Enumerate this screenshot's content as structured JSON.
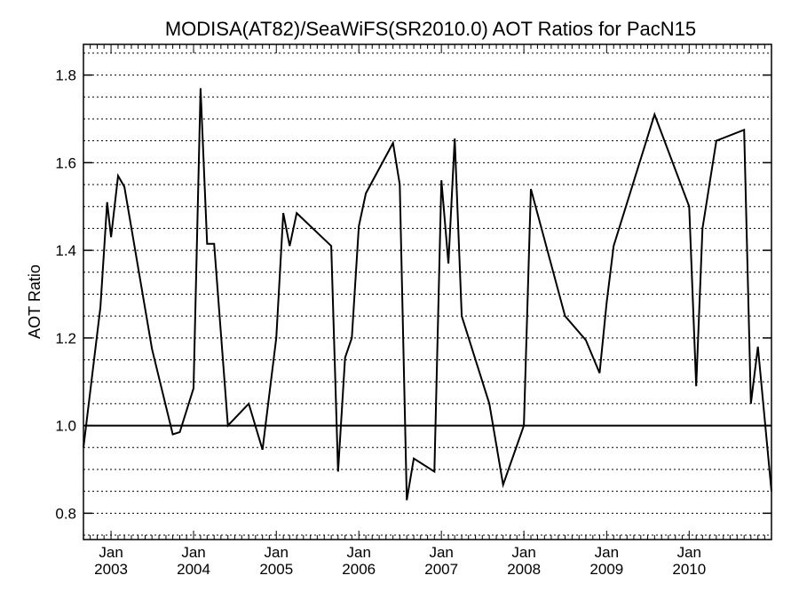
{
  "chart_data": {
    "type": "line",
    "title": "MODISA(AT82)/SeaWiFS(SR2010.0)  AOT Ratios for PacN15",
    "ylabel": "AOT Ratio",
    "xlabel": "",
    "xlim": [
      "2002-09-01",
      "2010-12-31"
    ],
    "ylim": [
      0.74,
      1.87
    ],
    "yticks": [
      0.8,
      1.0,
      1.2,
      1.4,
      1.6,
      1.8
    ],
    "ytick_labels": [
      "0.8",
      "1.0",
      "1.2",
      "1.4",
      "1.6",
      "1.8"
    ],
    "xticks": [
      {
        "date": "2003-01-01",
        "month": "Jan",
        "year": "2003"
      },
      {
        "date": "2004-01-01",
        "month": "Jan",
        "year": "2004"
      },
      {
        "date": "2005-01-01",
        "month": "Jan",
        "year": "2005"
      },
      {
        "date": "2006-01-01",
        "month": "Jan",
        "year": "2006"
      },
      {
        "date": "2007-01-01",
        "month": "Jan",
        "year": "2007"
      },
      {
        "date": "2008-01-01",
        "month": "Jan",
        "year": "2008"
      },
      {
        "date": "2009-01-01",
        "month": "Jan",
        "year": "2009"
      },
      {
        "date": "2010-01-01",
        "month": "Jan",
        "year": "2010"
      }
    ],
    "grid": "horizontal-dotted",
    "reference_line": 1.0,
    "series": [
      {
        "x": [
          "2002-09-01",
          "2002-11-15",
          "2002-12-15",
          "2003-01-01",
          "2003-02-01",
          "2003-03-01",
          "2003-07-01",
          "2003-10-01",
          "2003-11-01",
          "2004-01-01",
          "2004-02-01",
          "2004-03-01",
          "2004-04-01",
          "2004-06-01",
          "2004-09-01",
          "2004-11-01",
          "2005-01-01",
          "2005-02-01",
          "2005-03-01",
          "2005-04-01",
          "2005-09-01",
          "2005-10-01",
          "2005-11-01",
          "2005-12-01",
          "2006-01-01",
          "2006-02-01",
          "2006-06-01",
          "2006-07-01",
          "2006-08-01",
          "2006-09-01",
          "2006-12-01",
          "2007-01-01",
          "2007-02-01",
          "2007-03-01",
          "2007-04-01",
          "2007-08-01",
          "2007-10-01",
          "2008-01-01",
          "2008-02-01",
          "2008-07-01",
          "2008-10-01",
          "2008-12-01",
          "2009-01-01",
          "2009-02-01",
          "2009-08-01",
          "2010-01-01",
          "2010-02-01",
          "2010-03-01",
          "2010-05-01",
          "2010-09-01",
          "2010-10-01",
          "2010-11-01",
          "2010-12-31"
        ],
        "values": [
          0.95,
          1.27,
          1.51,
          1.43,
          1.57,
          1.545,
          1.175,
          0.98,
          0.985,
          1.085,
          1.77,
          1.415,
          1.415,
          1.0,
          1.05,
          0.945,
          1.2,
          1.485,
          1.41,
          1.485,
          1.41,
          0.895,
          1.155,
          1.2,
          1.455,
          1.53,
          1.645,
          1.55,
          0.83,
          0.925,
          0.895,
          1.56,
          1.37,
          1.655,
          1.25,
          1.05,
          0.865,
          1.0,
          1.54,
          1.25,
          1.195,
          1.12,
          1.28,
          1.41,
          1.71,
          1.5,
          1.09,
          1.45,
          1.65,
          1.675,
          1.05,
          1.18,
          0.85
        ]
      }
    ]
  }
}
